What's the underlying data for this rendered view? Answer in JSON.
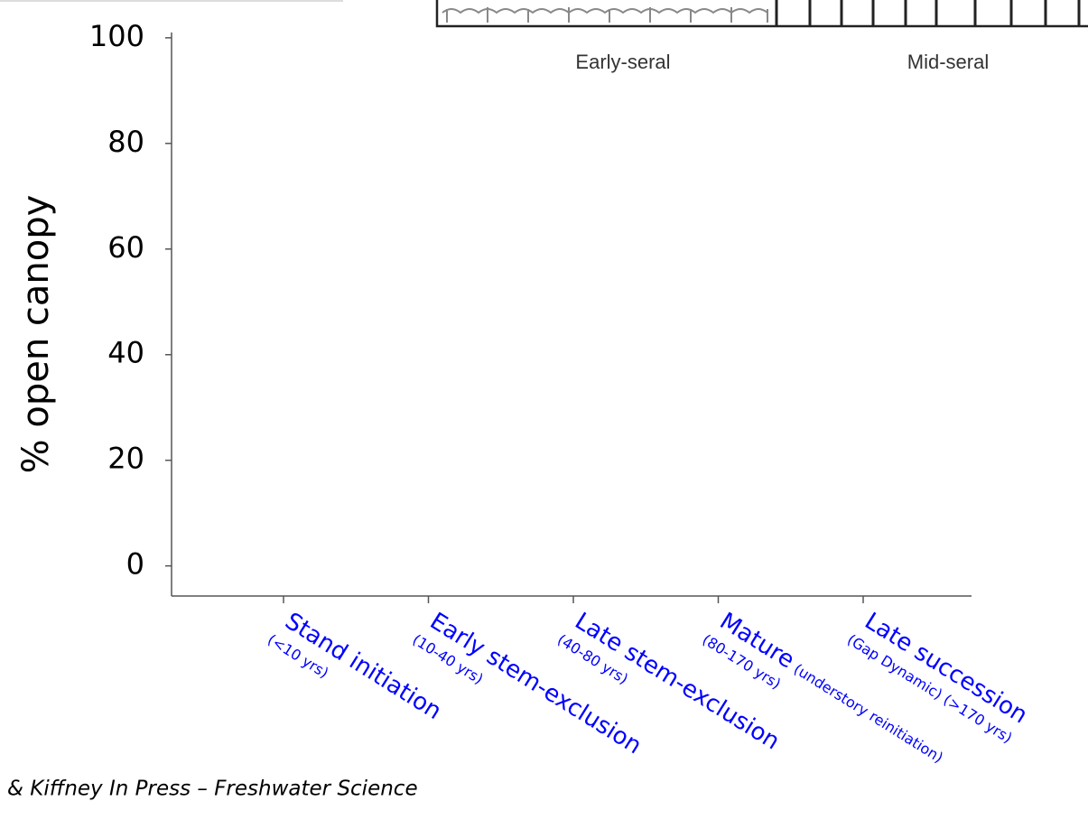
{
  "chart_data": {
    "type": "scatter",
    "y_label": "% open canopy",
    "ylim": [
      -5.7,
      101
    ],
    "yticks": [
      0,
      20,
      40,
      60,
      80,
      100
    ],
    "categories": [
      "Stand initiation",
      "Early stem-exclusion",
      "Late stem-exclusion",
      "Mature",
      "Late succession"
    ],
    "category_ages": [
      "(<10 yrs)",
      "(10-40 yrs)",
      "(40-80 yrs)",
      "(80-170 yrs)",
      "(Gap Dynamic) (>170 yrs)"
    ],
    "category_notes": [
      null,
      null,
      null,
      "(understory reinitiation)",
      null
    ],
    "category_color": "#0000ff",
    "inset_labels": [
      "Early-seral",
      "Mid-seral"
    ],
    "citation": "& Kiffney In Press – Freshwater Science"
  }
}
